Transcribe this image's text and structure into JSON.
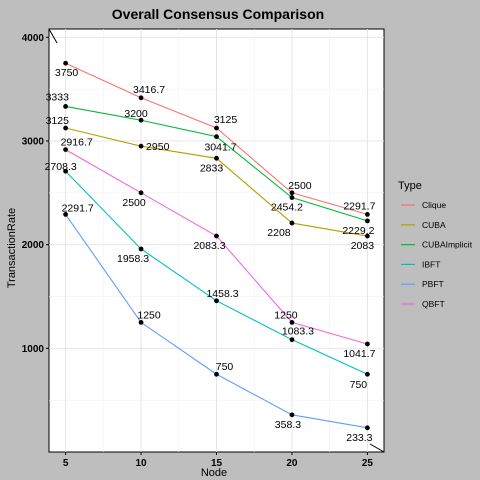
{
  "chart_data": {
    "type": "line",
    "title": "Overall Consensus Comparison",
    "xlabel": "Node",
    "ylabel": "TransactionRate",
    "x": [
      5,
      10,
      15,
      20,
      25
    ],
    "xlim": [
      3.9,
      26.1
    ],
    "ylim": [
      0,
      4080
    ],
    "yticks": [
      1000,
      2000,
      3000,
      4000
    ],
    "grid": true,
    "legend_title": "Type",
    "legend_position": "right",
    "series": [
      {
        "name": "Clique",
        "color": "#f8766d",
        "values": [
          3750,
          3416.7,
          3125,
          2500,
          2291.7
        ],
        "labels": [
          "3750",
          "3416.7",
          "3125",
          "2500",
          "2291.7"
        ]
      },
      {
        "name": "CUBA",
        "color": "#b79f00",
        "values": [
          3125,
          2950,
          2833,
          2208,
          2083
        ],
        "labels": [
          "3125",
          "2950",
          "2833",
          "2208",
          "2083"
        ]
      },
      {
        "name": "CUBAImplicit",
        "color": "#00ba38",
        "values": [
          3333,
          3200,
          3041.7,
          2454.2,
          2229.2
        ],
        "labels": [
          "3333",
          "3200",
          "3041.7",
          "2454.2",
          "2229.2"
        ]
      },
      {
        "name": "IBFT",
        "color": "#00bfc4",
        "values": [
          2708.3,
          1958.3,
          1458.3,
          1083.3,
          750
        ],
        "labels": [
          "2708.3",
          "1958.3",
          "1458.3",
          "1083.3",
          "750"
        ]
      },
      {
        "name": "PBFT",
        "color": "#619cff",
        "values": [
          2291.7,
          1250,
          750,
          358.3,
          233.3
        ],
        "labels": [
          "2291.7",
          "1250",
          "750",
          "358.3",
          "233.3"
        ]
      },
      {
        "name": "QBFT",
        "color": "#f564e3",
        "values": [
          2916.7,
          2500,
          2083.3,
          1250,
          1041.7
        ],
        "labels": [
          "2916.7",
          "2500",
          "2083.3",
          "1250",
          "1041.7"
        ]
      }
    ]
  }
}
